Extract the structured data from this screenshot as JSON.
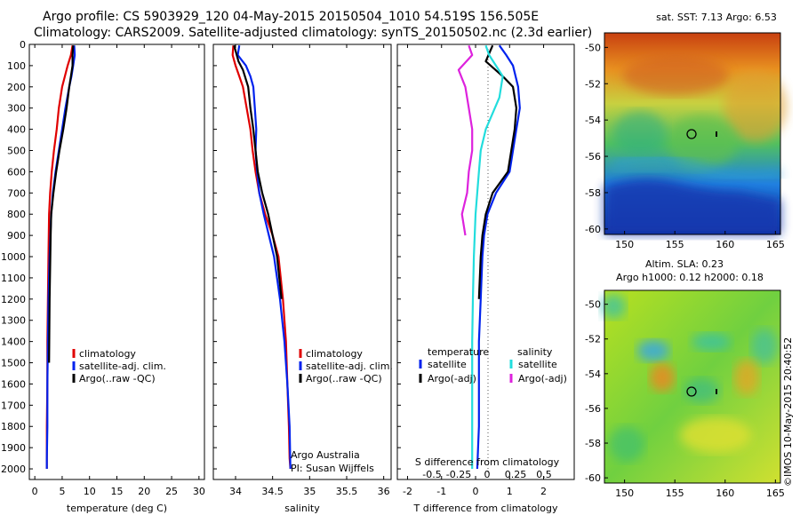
{
  "header": {
    "title_line1": "Argo profile: CS 5903929_120 04-May-2015 20150504_1010 54.519S 156.505E",
    "title_line2": "Climatology: CARS2009. Satellite-adjusted climatology: synTS_20150502.nc (2.3d earlier)"
  },
  "colors": {
    "climatology": "#e00000",
    "satellite": "#0022ee",
    "argo": "#000000",
    "sat_salinity": "#22dddd",
    "argo_adj_salinity": "#dd22dd"
  },
  "chart_data": [
    {
      "id": "temperature",
      "type": "line",
      "xlabel": "temperature (deg C)",
      "ylabel": "",
      "xlim": [
        -1,
        31
      ],
      "ylim": [
        2050,
        0
      ],
      "xticks": [
        "0",
        "5",
        "10",
        "15",
        "20",
        "25",
        "30"
      ],
      "yticks": [
        "0",
        "100",
        "200",
        "300",
        "400",
        "500",
        "600",
        "700",
        "800",
        "900",
        "1000",
        "1100",
        "1200",
        "1300",
        "1400",
        "1500",
        "1600",
        "1700",
        "1800",
        "1900",
        "2000"
      ],
      "legend": [
        "climatology",
        "satellite-adj. clim.",
        "Argo(..raw -QC)"
      ],
      "series": [
        {
          "name": "climatology",
          "color": "#e00000",
          "x": [
            6.9,
            6.6,
            6.0,
            5.5,
            5.0,
            4.4,
            4.0,
            3.5,
            3.1,
            2.8,
            2.6,
            2.5,
            2.4,
            2.3,
            2.3,
            2.3,
            2.2,
            2.2,
            2.2
          ],
          "y": [
            5,
            50,
            100,
            150,
            200,
            300,
            400,
            500,
            600,
            700,
            800,
            1000,
            1200,
            1400,
            1500,
            1600,
            1800,
            1950,
            2000
          ]
        },
        {
          "name": "satellite-adj. clim.",
          "color": "#0022ee",
          "x": [
            7.2,
            7.3,
            7.0,
            6.7,
            6.3,
            5.6,
            5.0,
            4.4,
            3.8,
            3.3,
            3.0,
            2.7,
            2.5,
            2.4,
            2.3,
            2.3,
            2.2,
            2.2
          ],
          "y": [
            5,
            50,
            100,
            150,
            200,
            300,
            400,
            500,
            600,
            700,
            800,
            1000,
            1200,
            1400,
            1600,
            1800,
            1950,
            2000
          ]
        },
        {
          "name": "Argo(..raw -QC)",
          "color": "#000000",
          "x": [
            7.0,
            6.9,
            6.9,
            6.6,
            6.3,
            5.8,
            5.2,
            4.5,
            3.9,
            3.4,
            3.0,
            2.9,
            2.7,
            2.6
          ],
          "y": [
            5,
            50,
            100,
            150,
            200,
            300,
            400,
            500,
            600,
            700,
            800,
            900,
            1200,
            1500
          ]
        }
      ]
    },
    {
      "id": "salinity",
      "type": "line",
      "xlabel": "salinity",
      "ylabel": "",
      "xlim": [
        33.7,
        36.1
      ],
      "ylim": [
        2050,
        0
      ],
      "xticks": [
        "34",
        "34.5",
        "35",
        "35.5",
        "36"
      ],
      "legend": [
        "climatology",
        "satellite-adj. clim.",
        "Argo(..raw -QC)"
      ],
      "annotation": [
        "Argo Australia",
        "PI: Susan Wijffels"
      ],
      "series": [
        {
          "name": "climatology",
          "color": "#e00000",
          "x": [
            33.97,
            33.96,
            34.0,
            34.05,
            34.1,
            34.15,
            34.2,
            34.23,
            34.27,
            34.32,
            34.4,
            34.5,
            34.58,
            34.64,
            34.68,
            34.7,
            34.72,
            34.73,
            34.74
          ],
          "y": [
            5,
            50,
            100,
            150,
            200,
            300,
            400,
            500,
            600,
            700,
            800,
            900,
            1000,
            1200,
            1400,
            1600,
            1800,
            1950,
            2000
          ]
        },
        {
          "name": "satellite-adj. clim.",
          "color": "#0022ee",
          "x": [
            34.05,
            34.03,
            34.14,
            34.2,
            34.24,
            34.26,
            34.28,
            34.27,
            34.29,
            34.32,
            34.38,
            34.45,
            34.52,
            34.6,
            34.66,
            34.7,
            34.73,
            34.74
          ],
          "y": [
            5,
            50,
            100,
            150,
            200,
            300,
            400,
            500,
            600,
            700,
            800,
            900,
            1000,
            1200,
            1400,
            1600,
            1800,
            2000
          ]
        },
        {
          "name": "Argo(..raw -QC)",
          "color": "#000000",
          "x": [
            33.98,
            34.0,
            34.04,
            34.1,
            34.17,
            34.2,
            34.24,
            34.27,
            34.3,
            34.36,
            34.44,
            34.5,
            34.56,
            34.62
          ],
          "y": [
            5,
            30,
            80,
            120,
            200,
            300,
            400,
            500,
            600,
            700,
            800,
            900,
            1000,
            1200
          ]
        }
      ]
    },
    {
      "id": "difference",
      "type": "line",
      "xlabel": "T difference from climatology",
      "toplabel": "S difference from climatology",
      "xlim": [
        -2.3,
        2.9
      ],
      "ylim": [
        2050,
        0
      ],
      "xticks": [
        "-2",
        "-1",
        "0",
        "1",
        "2"
      ],
      "sticks": [
        "-0.5",
        "-0.25",
        "0",
        "0.25",
        "0.5"
      ],
      "legend_headers": [
        "temperature",
        "salinity"
      ],
      "legend": [
        "satellite",
        "Argo(-adj)",
        "satellite",
        "Argo(-adj)"
      ],
      "series": [
        {
          "name": "satellite",
          "quantity": "temperature",
          "color": "#0022ee",
          "x": [
            0.7,
            0.9,
            1.1,
            1.25,
            1.3,
            1.2,
            1.1,
            1.0,
            0.6,
            0.35,
            0.25,
            0.2,
            0.15,
            0.1,
            0.1,
            0.1,
            0.05
          ],
          "y": [
            5,
            50,
            100,
            200,
            300,
            400,
            500,
            600,
            700,
            800,
            900,
            1000,
            1200,
            1400,
            1600,
            1800,
            2000
          ]
        },
        {
          "name": "Argo(-adj)",
          "quantity": "temperature",
          "color": "#000000",
          "x": [
            0.5,
            0.3,
            0.8,
            1.1,
            1.2,
            1.15,
            1.05,
            0.95,
            0.5,
            0.3,
            0.2,
            0.15,
            0.1
          ],
          "y": [
            5,
            80,
            150,
            200,
            300,
            400,
            500,
            600,
            700,
            800,
            900,
            1000,
            1200
          ]
        },
        {
          "name": "satellite",
          "quantity": "salinity",
          "color": "#22dddd",
          "x": [
            0.3,
            0.4,
            0.8,
            0.7,
            0.3,
            0.15,
            0.1,
            0.05,
            0.0,
            -0.05,
            -0.08,
            -0.1,
            -0.1,
            -0.1
          ],
          "y": [
            5,
            50,
            150,
            250,
            400,
            500,
            600,
            700,
            800,
            1000,
            1200,
            1400,
            1600,
            2000
          ]
        },
        {
          "name": "Argo(-adj)",
          "quantity": "salinity",
          "color": "#dd22dd",
          "x": [
            -0.2,
            -0.1,
            -0.5,
            -0.3,
            -0.2,
            -0.1,
            -0.1,
            -0.2,
            -0.25,
            -0.4,
            -0.3
          ],
          "y": [
            5,
            50,
            120,
            200,
            300,
            400,
            500,
            600,
            700,
            800,
            900
          ]
        }
      ]
    }
  ],
  "maps": [
    {
      "id": "sst-map",
      "title": "sat. SST: 7.13  Argo: 6.53",
      "xticks": [
        "150",
        "155",
        "160",
        "165"
      ],
      "yticks": [
        "-50",
        "-52",
        "-54",
        "-56",
        "-58",
        "-60"
      ]
    },
    {
      "id": "sla-map",
      "title_line1": "Altim. SLA: 0.23",
      "title_line2": "Argo h1000: 0.12 h2000: 0.18",
      "xticks": [
        "150",
        "155",
        "160",
        "165"
      ],
      "yticks": [
        "-50",
        "-52",
        "-54",
        "-56",
        "-58",
        "-60"
      ]
    }
  ],
  "credit": "©IMOS 10-May-2015 20:40:52"
}
